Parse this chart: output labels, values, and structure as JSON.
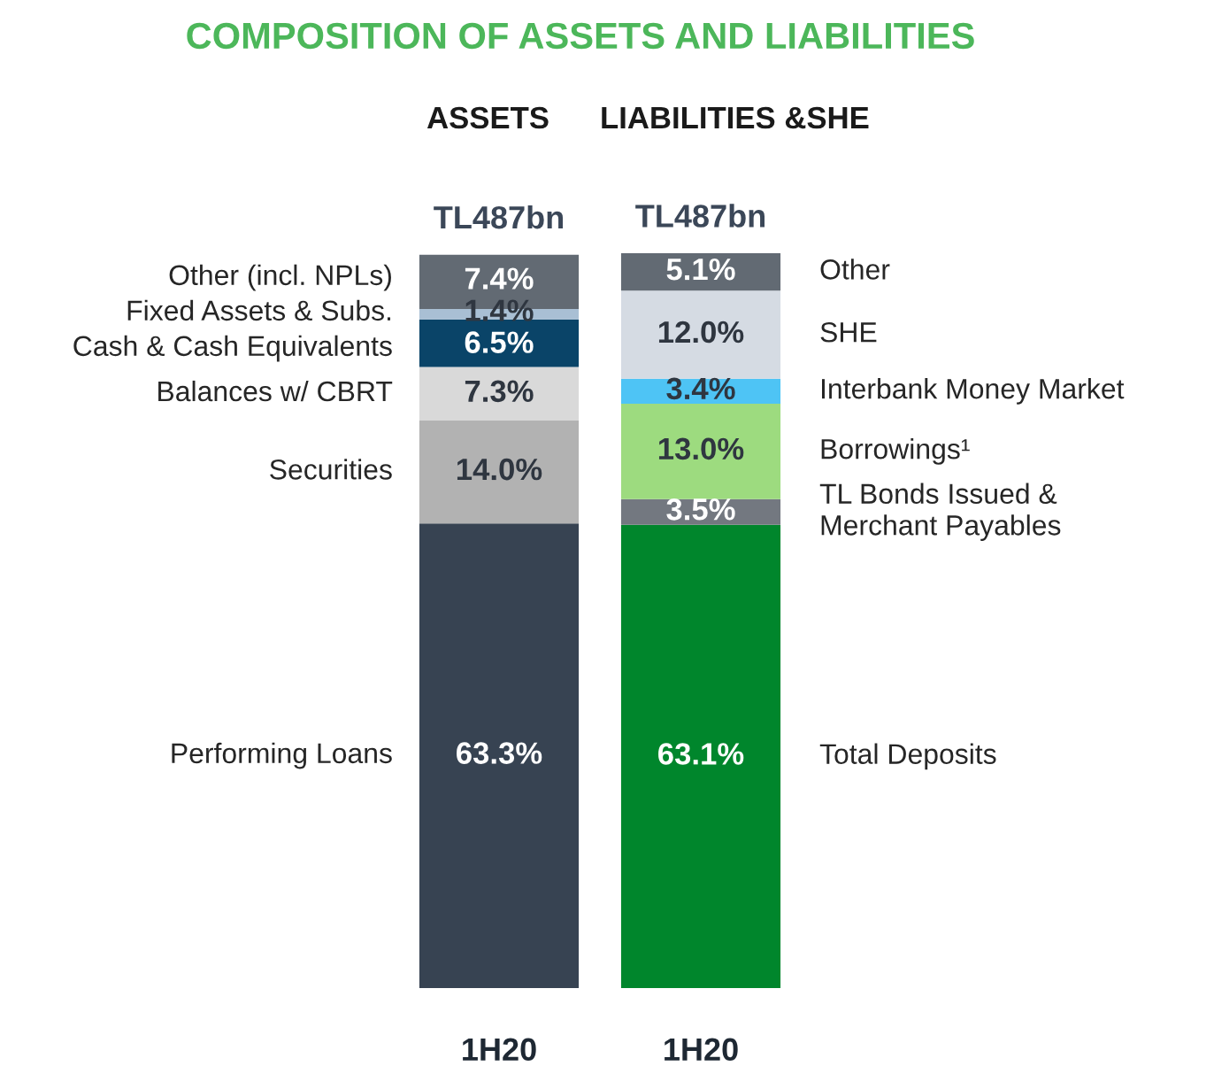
{
  "chart_data": {
    "type": "bar",
    "title": "COMPOSITION OF ASSETS AND LIABILITIES",
    "stacked": true,
    "tick_labels": "x",
    "categories": [
      "1H20",
      "1H20"
    ],
    "annotations": [
      "ASSETS",
      "LIABILITIES &SHE"
    ],
    "totals": [
      "TL487bn",
      "TL487bn"
    ],
    "series": [
      {
        "name": "Performing Loans",
        "color": "#374352",
        "values": [
          63.3,
          null
        ],
        "value_labels": [
          "63.3%",
          null
        ]
      },
      {
        "name": "Securities",
        "color": "#b2b2b2",
        "values": [
          14.0,
          null
        ],
        "value_labels": [
          "14.0%",
          null
        ]
      },
      {
        "name": "Balances w/ CBRT",
        "color": "#d9d9d9",
        "values": [
          7.3,
          null
        ],
        "value_labels": [
          "7.3%",
          null
        ]
      },
      {
        "name": "Cash & Cash Equivalents",
        "color": "#0a4468",
        "values": [
          6.5,
          null
        ],
        "value_labels": [
          "6.5%",
          null
        ]
      },
      {
        "name": "Fixed Assets & Subs.",
        "color": "#a9bfd4",
        "values": [
          1.4,
          null
        ],
        "value_labels": [
          "1.4%",
          null
        ]
      },
      {
        "name": "Other (incl. NPLs)",
        "color": "#626a73",
        "values": [
          7.4,
          null
        ],
        "value_labels": [
          "7.4%",
          null
        ]
      },
      {
        "name": "Total Deposits",
        "color": "#00862c",
        "values": [
          null,
          63.1
        ],
        "value_labels": [
          null,
          "63.1%"
        ]
      },
      {
        "name": "TL Bonds Issued &\nMerchant Payables",
        "color": "#737880",
        "values": [
          null,
          3.5
        ],
        "value_labels": [
          null,
          "3.5%"
        ]
      },
      {
        "name": "Borrowings¹",
        "color": "#9ddb7f",
        "values": [
          null,
          13.0
        ],
        "value_labels": [
          null,
          "13.0%"
        ]
      },
      {
        "name": "Interbank Money Market",
        "color": "#4ec4f5",
        "values": [
          null,
          3.4
        ],
        "value_labels": [
          null,
          "3.4%"
        ]
      },
      {
        "name": "SHE",
        "color": "#d5dbe3",
        "values": [
          null,
          12.0
        ],
        "value_labels": [
          null,
          "12.0%"
        ]
      },
      {
        "name": "Other",
        "color": "#626a73",
        "values": [
          null,
          5.1
        ],
        "value_labels": [
          null,
          "5.1%"
        ]
      }
    ]
  }
}
